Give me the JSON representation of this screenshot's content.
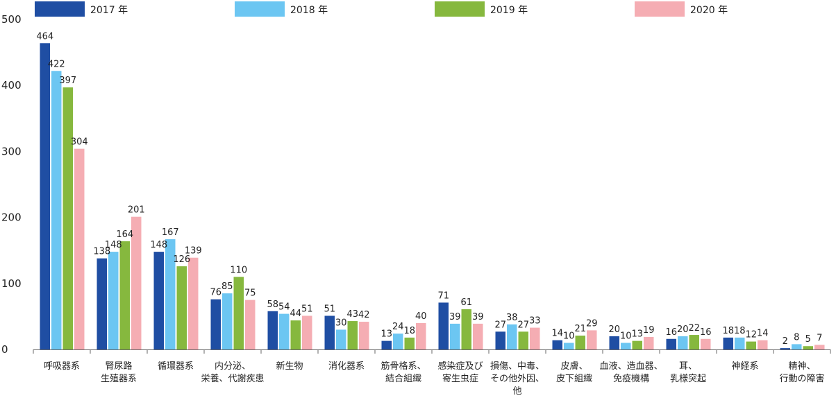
{
  "chart_data": {
    "type": "bar",
    "title": "",
    "xlabel": "",
    "ylabel": "",
    "ylim": [
      0,
      500
    ],
    "yticks": [
      "0",
      "100",
      "200",
      "300",
      "400",
      "500"
    ],
    "grid": false,
    "legend_position": "top",
    "categories": [
      [
        "呼吸器系"
      ],
      [
        "腎尿路",
        "生殖器系"
      ],
      [
        "循環器系"
      ],
      [
        "内分泌、",
        "栄養、代謝疾患"
      ],
      [
        "新生物"
      ],
      [
        "消化器系"
      ],
      [
        "筋骨格系、",
        "結合組織"
      ],
      [
        "感染症及び",
        "寄生虫症"
      ],
      [
        "損傷、中毒、",
        "その他外因、",
        "他"
      ],
      [
        "皮膚、",
        "皮下組織"
      ],
      [
        "血液、造血器、",
        "免疫機構"
      ],
      [
        "耳、",
        "乳様突起"
      ],
      [
        "神経系"
      ],
      [
        "精神、",
        "行動の障害"
      ]
    ],
    "series": [
      {
        "name": "2017 年",
        "color": "#1f4ea3",
        "values": [
          464,
          138,
          148,
          76,
          58,
          51,
          13,
          71,
          27,
          14,
          20,
          16,
          18,
          2
        ]
      },
      {
        "name": "2018 年",
        "color": "#6cc6f2",
        "values": [
          422,
          148,
          167,
          85,
          54,
          30,
          24,
          39,
          38,
          10,
          10,
          20,
          18,
          8
        ]
      },
      {
        "name": "2019 年",
        "color": "#86b83e",
        "values": [
          397,
          164,
          126,
          110,
          44,
          43,
          18,
          61,
          27,
          21,
          13,
          22,
          12,
          5
        ]
      },
      {
        "name": "2020 年",
        "color": "#f5adb3",
        "values": [
          304,
          201,
          139,
          75,
          51,
          42,
          40,
          39,
          33,
          29,
          19,
          16,
          14,
          7
        ]
      }
    ]
  }
}
